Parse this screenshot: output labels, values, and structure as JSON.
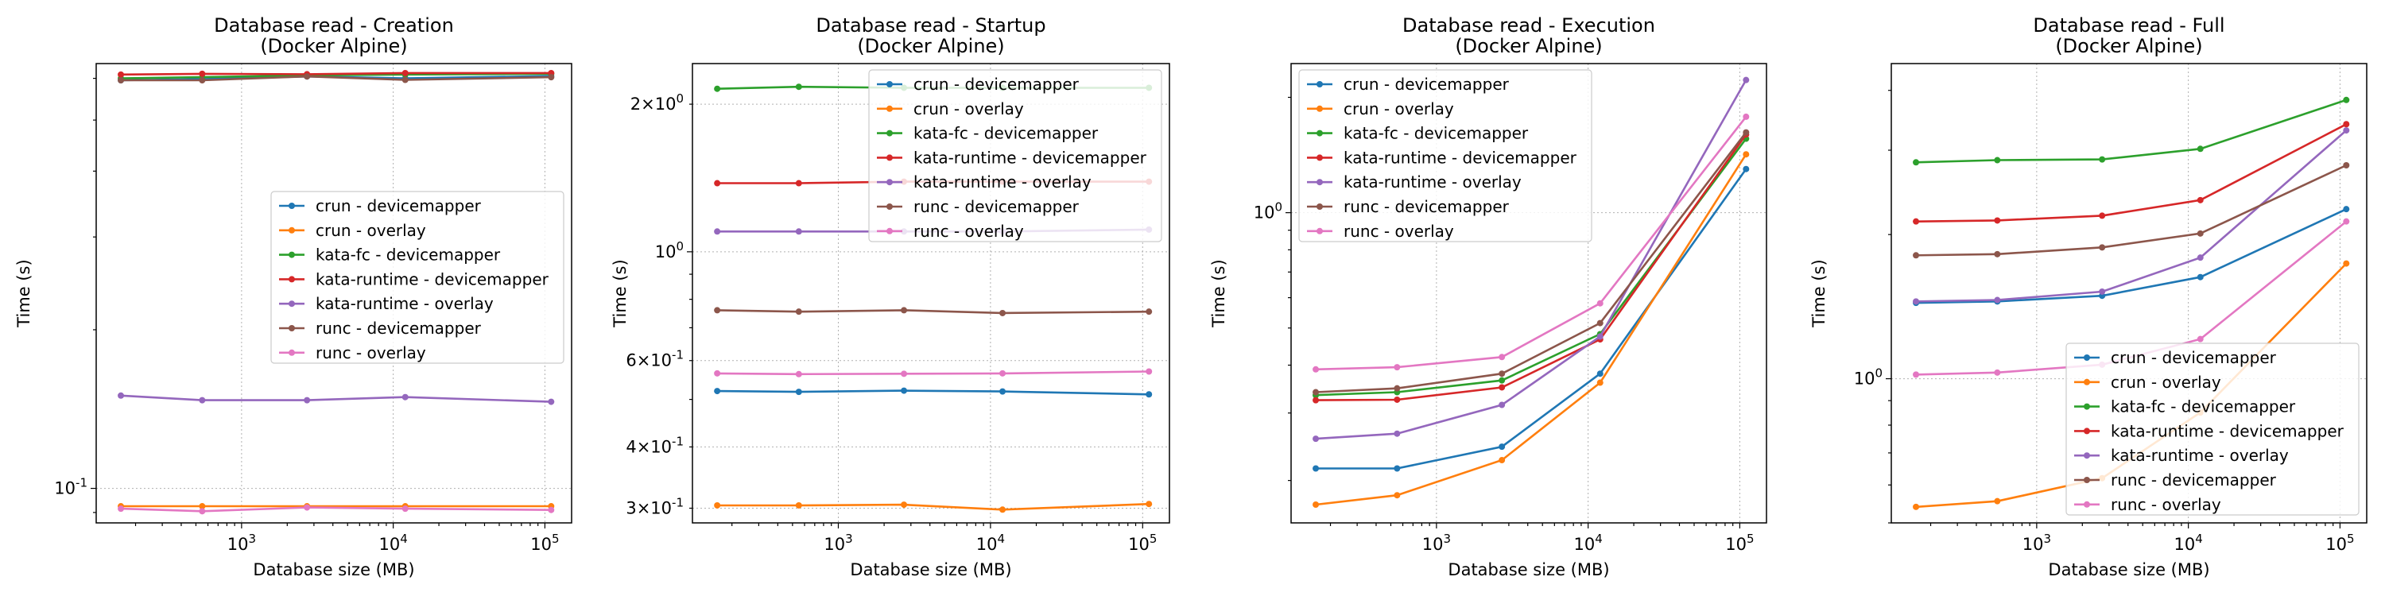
{
  "colors": {
    "crun - devicemapper": "#1f77b4",
    "crun - overlay": "#ff7f0e",
    "kata-fc - devicemapper": "#2ca02c",
    "kata-runtime - devicemapper": "#d62728",
    "kata-runtime - overlay": "#9467bd",
    "runc - devicemapper": "#8c564b",
    "runc - overlay": "#e377c2"
  },
  "chart_data": [
    {
      "type": "line",
      "title": "Database read - Creation\n(Docker Alpine)",
      "xlabel": "Database size (MB)",
      "ylabel": "Time (s)",
      "xscale": "log",
      "yscale": "log",
      "xlim": [
        110,
        150000
      ],
      "ylim": [
        0.086,
        0.64
      ],
      "grid": true,
      "legend_position": "center-right",
      "x_ticks": [
        {
          "v": 1000,
          "label": "10^3"
        },
        {
          "v": 10000,
          "label": "10^4"
        },
        {
          "v": 100000,
          "label": "10^5"
        }
      ],
      "y_ticks": [
        {
          "v": 0.1,
          "label": "10^-1"
        }
      ],
      "x": [
        160,
        550,
        2700,
        12000,
        110000
      ],
      "series": [
        {
          "name": "crun - devicemapper",
          "values": [
            0.595,
            0.598,
            0.605,
            0.6,
            0.606
          ]
        },
        {
          "name": "crun - overlay",
          "values": [
            0.0925,
            0.0925,
            0.0925,
            0.0925,
            0.0925
          ]
        },
        {
          "name": "kata-fc - devicemapper",
          "values": [
            0.6,
            0.603,
            0.608,
            0.61,
            0.612
          ]
        },
        {
          "name": "kata-runtime - devicemapper",
          "values": [
            0.61,
            0.612,
            0.611,
            0.614,
            0.614
          ]
        },
        {
          "name": "kata-runtime - overlay",
          "values": [
            0.15,
            0.147,
            0.147,
            0.149,
            0.146
          ]
        },
        {
          "name": "runc - devicemapper",
          "values": [
            0.595,
            0.595,
            0.605,
            0.596,
            0.603
          ]
        },
        {
          "name": "runc - overlay",
          "values": [
            0.0915,
            0.0905,
            0.092,
            0.0915,
            0.091
          ]
        }
      ]
    },
    {
      "type": "line",
      "title": "Database read - Startup\n(Docker Alpine)",
      "xlabel": "Database size (MB)",
      "ylabel": "Time (s)",
      "xscale": "log",
      "yscale": "log",
      "xlim": [
        110,
        150000
      ],
      "ylim": [
        0.28,
        2.42
      ],
      "grid": true,
      "legend_position": "upper-right",
      "x_ticks": [
        {
          "v": 1000,
          "label": "10^3"
        },
        {
          "v": 10000,
          "label": "10^4"
        },
        {
          "v": 100000,
          "label": "10^5"
        }
      ],
      "y_ticks": [
        {
          "v": 2,
          "label": "2×10^0"
        },
        {
          "v": 1,
          "label": "10^0"
        },
        {
          "v": 0.6,
          "label": "6×10^-1"
        },
        {
          "v": 0.4,
          "label": "4×10^-1"
        },
        {
          "v": 0.3,
          "label": "3×10^-1"
        }
      ],
      "x": [
        160,
        550,
        2700,
        12000,
        110000
      ],
      "series": [
        {
          "name": "crun - devicemapper",
          "values": [
            0.52,
            0.518,
            0.521,
            0.519,
            0.512
          ]
        },
        {
          "name": "crun - overlay",
          "values": [
            0.304,
            0.304,
            0.305,
            0.298,
            0.306
          ]
        },
        {
          "name": "kata-fc - devicemapper",
          "values": [
            2.15,
            2.17,
            2.16,
            2.16,
            2.16
          ]
        },
        {
          "name": "kata-runtime - devicemapper",
          "values": [
            1.38,
            1.38,
            1.39,
            1.39,
            1.39
          ]
        },
        {
          "name": "kata-runtime - overlay",
          "values": [
            1.1,
            1.1,
            1.1,
            1.1,
            1.11
          ]
        },
        {
          "name": "runc - devicemapper",
          "values": [
            0.76,
            0.755,
            0.76,
            0.75,
            0.755
          ]
        },
        {
          "name": "runc - overlay",
          "values": [
            0.565,
            0.563,
            0.564,
            0.565,
            0.57
          ]
        }
      ]
    },
    {
      "type": "line",
      "title": "Database read - Execution\n(Docker Alpine)",
      "xlabel": "Database size (MB)",
      "ylabel": "Time (s)",
      "xscale": "log",
      "yscale": "log",
      "xlim": [
        110,
        150000
      ],
      "ylim": [
        0.155,
        2.45
      ],
      "grid": true,
      "legend_position": "upper-left",
      "x_ticks": [
        {
          "v": 1000,
          "label": "10^3"
        },
        {
          "v": 10000,
          "label": "10^4"
        },
        {
          "v": 100000,
          "label": "10^5"
        }
      ],
      "y_ticks": [
        {
          "v": 1,
          "label": "10^0"
        }
      ],
      "x": [
        160,
        550,
        2700,
        12000,
        110000
      ],
      "series": [
        {
          "name": "crun - devicemapper",
          "values": [
            0.215,
            0.215,
            0.245,
            0.38,
            1.3
          ]
        },
        {
          "name": "crun - overlay",
          "values": [
            0.173,
            0.183,
            0.226,
            0.36,
            1.42
          ]
        },
        {
          "name": "kata-fc - devicemapper",
          "values": [
            0.334,
            0.34,
            0.365,
            0.482,
            1.56
          ]
        },
        {
          "name": "kata-runtime - devicemapper",
          "values": [
            0.324,
            0.325,
            0.35,
            0.467,
            1.6
          ]
        },
        {
          "name": "kata-runtime - overlay",
          "values": [
            0.257,
            0.265,
            0.315,
            0.475,
            2.22
          ]
        },
        {
          "name": "runc - devicemapper",
          "values": [
            0.34,
            0.348,
            0.38,
            0.515,
            1.62
          ]
        },
        {
          "name": "runc - overlay",
          "values": [
            0.39,
            0.395,
            0.42,
            0.58,
            1.78
          ]
        }
      ]
    },
    {
      "type": "line",
      "title": "Database read - Full\n(Docker Alpine)",
      "xlabel": "Database size (MB)",
      "ylabel": "Time (s)",
      "xscale": "log",
      "yscale": "log",
      "xlim": [
        110,
        150000
      ],
      "ylim": [
        0.5,
        4.55
      ],
      "grid": true,
      "legend_position": "lower-right",
      "x_ticks": [
        {
          "v": 1000,
          "label": "10^3"
        },
        {
          "v": 10000,
          "label": "10^4"
        },
        {
          "v": 100000,
          "label": "10^5"
        }
      ],
      "y_ticks": [
        {
          "v": 1,
          "label": "10^0"
        }
      ],
      "x": [
        160,
        550,
        2700,
        12000,
        110000
      ],
      "series": [
        {
          "name": "crun - devicemapper",
          "values": [
            1.44,
            1.45,
            1.49,
            1.63,
            2.26
          ]
        },
        {
          "name": "crun - overlay",
          "values": [
            0.54,
            0.555,
            0.62,
            0.85,
            1.74
          ]
        },
        {
          "name": "kata-fc - devicemapper",
          "values": [
            2.83,
            2.86,
            2.87,
            3.02,
            3.82
          ]
        },
        {
          "name": "kata-runtime - devicemapper",
          "values": [
            2.13,
            2.14,
            2.19,
            2.36,
            3.4
          ]
        },
        {
          "name": "kata-runtime - overlay",
          "values": [
            1.45,
            1.46,
            1.52,
            1.79,
            3.3
          ]
        },
        {
          "name": "runc - devicemapper",
          "values": [
            1.81,
            1.82,
            1.88,
            2.01,
            2.79
          ]
        },
        {
          "name": "runc - overlay",
          "values": [
            1.02,
            1.03,
            1.07,
            1.21,
            2.13
          ]
        }
      ]
    }
  ]
}
